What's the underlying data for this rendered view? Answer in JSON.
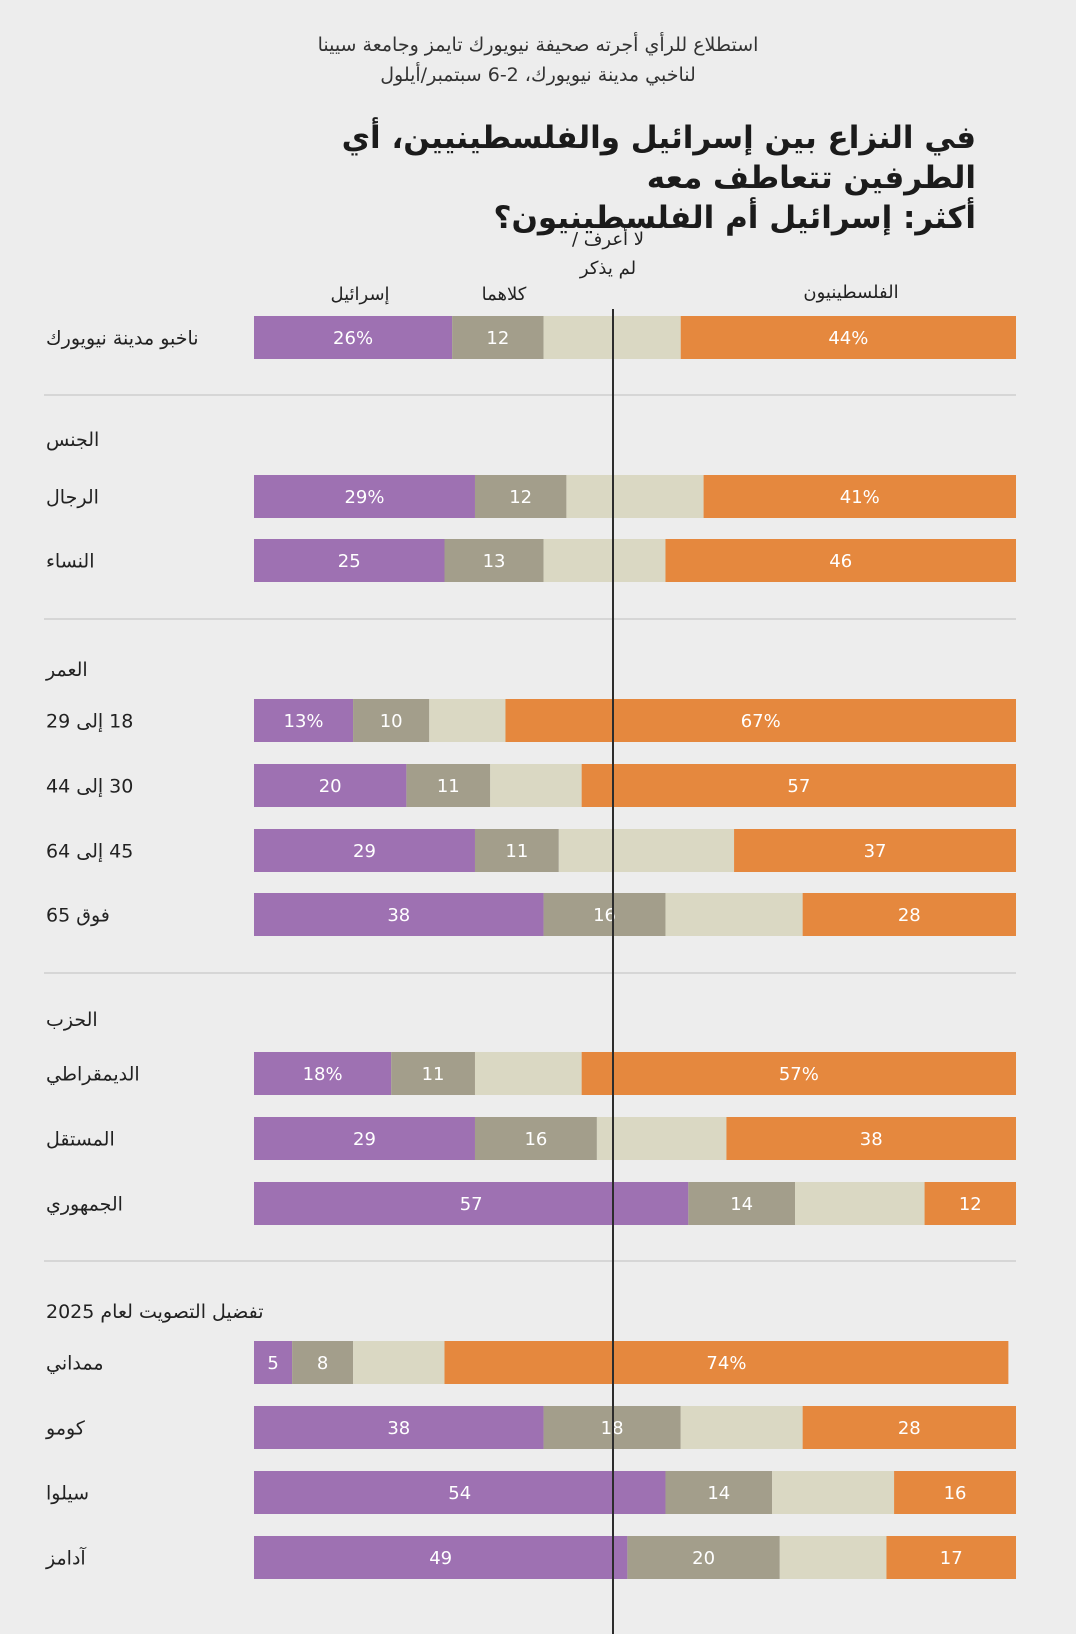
{
  "source_lines": [
    "استطلاع للرأي أجرته صحيفة نيويورك تايمز وجامعة سيينا",
    "لناخبي مدينة نيويورك، 2-6 سبتمبر/أيلول"
  ],
  "question_lines": [
    "في النزاع بين إسرائيل والفلسطينيين، أي الطرفين تتعاطف معه",
    "أكثر: إسرائيل أم الفلسطينيون؟"
  ],
  "chart_data": {
    "type": "bar",
    "orientation": "horizontal",
    "stacked": true,
    "xlim": [
      0,
      100
    ],
    "series": [
      {
        "name": "إسرائيل",
        "color": "#9e71b2"
      },
      {
        "name": "كلاهما",
        "color": "#a39e8b"
      },
      {
        "name": "لا أعرف / لم يذكر",
        "color": "#dad8c3"
      },
      {
        "name": "الفلسطينيون",
        "color": "#e5883e"
      }
    ],
    "header_labels": {
      "israel": "إسرائيل",
      "both": "كلاهما",
      "dk_line1": "لا أعرف /",
      "dk_line2": "لم يذكر",
      "palestinians": "الفلسطينيون"
    },
    "groups": [
      {
        "title": "",
        "rows": [
          {
            "label": "ناخبو مدينة نيويورك",
            "israel": 26,
            "both": 12,
            "dk": 18,
            "pal": 44,
            "israel_label": "26%",
            "both_label": "12",
            "pal_label": "44%"
          }
        ]
      },
      {
        "title": "الجنس",
        "rows": [
          {
            "label": "الرجال",
            "israel": 29,
            "both": 12,
            "dk": 18,
            "pal": 41,
            "israel_label": "29%",
            "both_label": "12",
            "pal_label": "41%"
          },
          {
            "label": "النساء",
            "israel": 25,
            "both": 13,
            "dk": 16,
            "pal": 46,
            "israel_label": "25",
            "both_label": "13",
            "pal_label": "46"
          }
        ]
      },
      {
        "title": "العمر",
        "rows": [
          {
            "label": "18 إلى 29",
            "israel": 13,
            "both": 10,
            "dk": 10,
            "pal": 67,
            "israel_label": "13%",
            "both_label": "10",
            "pal_label": "67%"
          },
          {
            "label": "30 إلى 44",
            "israel": 20,
            "both": 11,
            "dk": 12,
            "pal": 57,
            "israel_label": "20",
            "both_label": "11",
            "pal_label": "57"
          },
          {
            "label": "45 إلى 64",
            "israel": 29,
            "both": 11,
            "dk": 23,
            "pal": 37,
            "israel_label": "29",
            "both_label": "11",
            "pal_label": "37"
          },
          {
            "label": "فوق 65",
            "israel": 38,
            "both": 16,
            "dk": 18,
            "pal": 28,
            "israel_label": "38",
            "both_label": "16",
            "pal_label": "28"
          }
        ]
      },
      {
        "title": "الحزب",
        "rows": [
          {
            "label": "الديمقراطي",
            "israel": 18,
            "both": 11,
            "dk": 14,
            "pal": 57,
            "israel_label": "18%",
            "both_label": "11",
            "pal_label": "57%"
          },
          {
            "label": "المستقل",
            "israel": 29,
            "both": 16,
            "dk": 17,
            "pal": 38,
            "israel_label": "29",
            "both_label": "16",
            "pal_label": "38"
          },
          {
            "label": "الجمهوري",
            "israel": 57,
            "both": 14,
            "dk": 17,
            "pal": 12,
            "israel_label": "57",
            "both_label": "14",
            "pal_label": "12"
          }
        ]
      },
      {
        "title": "تفضيل التصويت لعام 2025",
        "rows": [
          {
            "label": "ممداني",
            "israel": 5,
            "both": 8,
            "dk": 12,
            "pal": 74,
            "israel_label": "5",
            "both_label": "8",
            "pal_label": "74%"
          },
          {
            "label": "كومو",
            "israel": 38,
            "both": 18,
            "dk": 16,
            "pal": 28,
            "israel_label": "38",
            "both_label": "18",
            "pal_label": "28"
          },
          {
            "label": "سيلوا",
            "israel": 54,
            "both": 14,
            "dk": 16,
            "pal": 16,
            "israel_label": "54",
            "both_label": "14",
            "pal_label": "16"
          },
          {
            "label": "آدامز",
            "israel": 49,
            "both": 20,
            "dk": 14,
            "pal": 17,
            "israel_label": "49",
            "both_label": "20",
            "pal_label": "17"
          }
        ]
      }
    ]
  }
}
